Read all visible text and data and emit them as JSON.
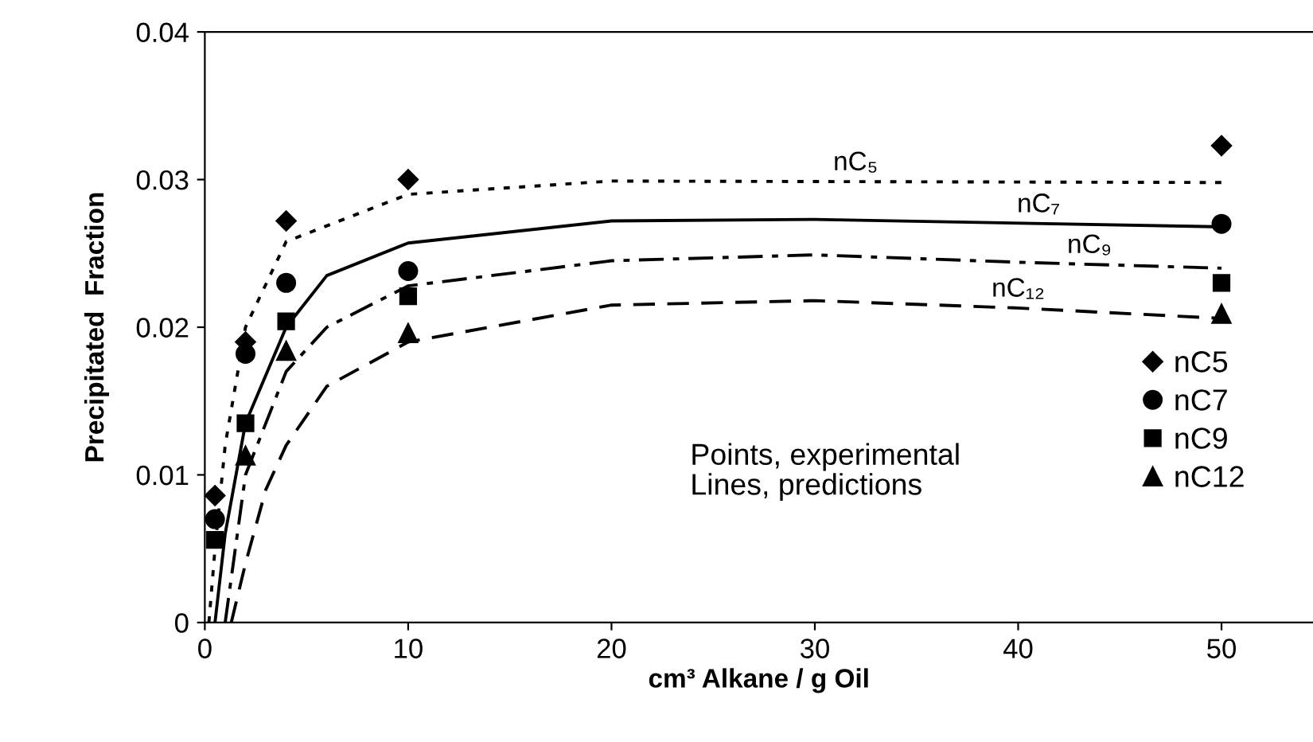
{
  "chart_data": {
    "type": "line",
    "xlabel": "cm³ Alkane / g Oil",
    "ylabel": "Precipitated  Fraction",
    "xlim": [
      0,
      54.5
    ],
    "ylim": [
      0,
      0.04
    ],
    "xticks": [
      0,
      10,
      20,
      30,
      40,
      50
    ],
    "yticks": [
      0,
      {
        "value": 0.01,
        "label": "0.01"
      },
      {
        "value": 0.02,
        "label": "0.02"
      },
      {
        "value": 0.03,
        "label": "0.03"
      },
      {
        "value": 0.04,
        "label": "0.04"
      }
    ],
    "grid": false,
    "legend": "right",
    "series": [
      {
        "name": "nC5",
        "type": "scatter",
        "marker": "diamond",
        "color": "#000000",
        "x": [
          0.5,
          2,
          4,
          10,
          50
        ],
        "values": [
          0.0086,
          0.019,
          0.0272,
          0.03,
          0.0323
        ]
      },
      {
        "name": "nC7",
        "type": "scatter",
        "marker": "circle",
        "color": "#000000",
        "x": [
          0.5,
          2,
          4,
          10,
          50
        ],
        "values": [
          0.007,
          0.0182,
          0.023,
          0.0238,
          0.027
        ]
      },
      {
        "name": "nC9",
        "type": "scatter",
        "marker": "square",
        "color": "#000000",
        "x": [
          0.5,
          2,
          4,
          10,
          50
        ],
        "values": [
          0.0056,
          0.0135,
          0.0204,
          0.0221,
          0.023
        ]
      },
      {
        "name": "nC12",
        "type": "scatter",
        "marker": "triangle",
        "color": "#000000",
        "x": [
          2,
          4,
          10,
          50
        ],
        "values": [
          0.0113,
          0.0184,
          0.0196,
          0.0209
        ]
      },
      {
        "name": "nC₅",
        "line_style": "dotted",
        "color": "#000000",
        "x": [
          0.2,
          0.5,
          1,
          2,
          4,
          10,
          20,
          50
        ],
        "values": [
          0,
          0.005,
          0.012,
          0.02,
          0.0258,
          0.029,
          0.0299,
          0.0298
        ]
      },
      {
        "name": "nC₇",
        "line_style": "solid",
        "color": "#000000",
        "x": [
          0.5,
          1,
          2,
          4,
          6,
          10,
          20,
          30,
          50
        ],
        "values": [
          0,
          0.006,
          0.0135,
          0.02,
          0.0235,
          0.0257,
          0.0272,
          0.0273,
          0.0268
        ]
      },
      {
        "name": "nC₉",
        "line_style": "dashdot",
        "color": "#000000",
        "x": [
          1,
          2,
          4,
          6,
          10,
          20,
          30,
          40,
          50
        ],
        "values": [
          0,
          0.01,
          0.017,
          0.02,
          0.0228,
          0.0245,
          0.0249,
          0.0244,
          0.024
        ]
      },
      {
        "name": "nC₁₂",
        "line_style": "dashed",
        "color": "#000000",
        "x": [
          1.3,
          2,
          3,
          4,
          6,
          10,
          20,
          30,
          40,
          50
        ],
        "values": [
          0,
          0.004,
          0.009,
          0.012,
          0.016,
          0.019,
          0.0215,
          0.0218,
          0.0213,
          0.0206
        ]
      }
    ],
    "annotations": [
      "Points, experimental\nLines, predictions"
    ]
  }
}
